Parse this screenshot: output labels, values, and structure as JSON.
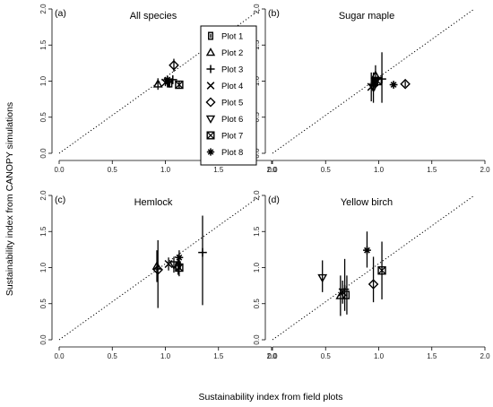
{
  "chart_data": {
    "type": "scatter",
    "xlabel": "Sustainability index from field plots",
    "ylabel": "Sustainability index from CANOPY simulations",
    "xlim": [
      0,
      2
    ],
    "ylim": [
      0,
      2
    ],
    "xticks": [
      "0.0",
      "0.5",
      "1.0",
      "1.5",
      "2.0"
    ],
    "yticks": [
      "0.0",
      "0.5",
      "1.0",
      "1.5",
      "2.0"
    ],
    "reference_line": "1:1 dotted",
    "legend": {
      "location": "panel (a), upper right",
      "entries": [
        {
          "name": "Plot 1",
          "marker": "plot1"
        },
        {
          "name": "Plot 2",
          "marker": "triangle-up"
        },
        {
          "name": "Plot 3",
          "marker": "plus"
        },
        {
          "name": "Plot 4",
          "marker": "cross"
        },
        {
          "name": "Plot 5",
          "marker": "diamond"
        },
        {
          "name": "Plot 6",
          "marker": "triangle-down"
        },
        {
          "name": "Plot 7",
          "marker": "boxed-x"
        },
        {
          "name": "Plot 8",
          "marker": "asterisk"
        }
      ]
    },
    "panels": [
      {
        "tag": "(a)",
        "title": "All species",
        "points": [
          {
            "plot": 1,
            "x": 1.04,
            "y": 0.97,
            "yerr": [
              0.91,
              1.03
            ]
          },
          {
            "plot": 2,
            "x": 0.93,
            "y": 0.96,
            "yerr": [
              0.88,
              1.04
            ]
          },
          {
            "plot": 3,
            "x": 1.07,
            "y": 1.02,
            "yerr": [
              0.96,
              1.08
            ]
          },
          {
            "plot": 4,
            "x": 1.0,
            "y": 0.98,
            "yerr": [
              0.93,
              1.03
            ]
          },
          {
            "plot": 5,
            "x": 1.08,
            "y": 1.22,
            "yerr": [
              1.13,
              1.31
            ]
          },
          {
            "plot": 6,
            "x": 1.03,
            "y": 0.99,
            "yerr": [
              0.94,
              1.04
            ]
          },
          {
            "plot": 7,
            "x": 1.13,
            "y": 0.95,
            "yerr": [
              0.9,
              1.0
            ]
          },
          {
            "plot": 8,
            "x": 1.02,
            "y": 1.02,
            "yerr": [
              0.97,
              1.07
            ]
          }
        ]
      },
      {
        "tag": "(b)",
        "title": "Sugar maple",
        "points": [
          {
            "plot": 1,
            "x": 0.96,
            "y": 0.98,
            "yerr": [
              0.9,
              1.06
            ]
          },
          {
            "plot": 2,
            "x": 0.97,
            "y": 1.08,
            "yerr": [
              0.92,
              1.22
            ]
          },
          {
            "plot": 3,
            "x": 1.03,
            "y": 1.03,
            "yerr": [
              0.7,
              1.4
            ]
          },
          {
            "plot": 4,
            "x": 0.93,
            "y": 0.92,
            "yerr": [
              0.72,
              1.12
            ]
          },
          {
            "plot": 5,
            "x": 1.25,
            "y": 0.96,
            "yerr": [
              0.92,
              1.0
            ]
          },
          {
            "plot": 6,
            "x": 0.95,
            "y": 0.91,
            "yerr": [
              0.7,
              1.12
            ]
          },
          {
            "plot": 7,
            "x": 0.99,
            "y": 1.0,
            "yerr": [
              0.93,
              1.07
            ]
          },
          {
            "plot": 8,
            "x": 1.14,
            "y": 0.95,
            "yerr": [
              0.9,
              1.0
            ]
          }
        ]
      },
      {
        "tag": "(c)",
        "title": "Hemlock",
        "points": [
          {
            "plot": 1,
            "x": 1.12,
            "y": 1.03,
            "yerr": [
              0.9,
              1.16
            ]
          },
          {
            "plot": 2,
            "x": 0.92,
            "y": 1.02,
            "yerr": [
              0.8,
              1.24
            ]
          },
          {
            "plot": 3,
            "x": 1.35,
            "y": 1.21,
            "yerr": [
              0.48,
              1.72
            ]
          },
          {
            "plot": 4,
            "x": 1.03,
            "y": 1.05,
            "yerr": [
              0.96,
              1.14
            ]
          },
          {
            "plot": 5,
            "x": 0.93,
            "y": 0.97,
            "yerr": [
              0.44,
              1.38
            ]
          },
          {
            "plot": 6,
            "x": 1.08,
            "y": 1.04,
            "yerr": [
              0.93,
              1.15
            ]
          },
          {
            "plot": 7,
            "x": 1.13,
            "y": 1.0,
            "yerr": [
              0.88,
              1.12
            ]
          },
          {
            "plot": 8,
            "x": 1.13,
            "y": 1.14,
            "yerr": [
              1.04,
              1.24
            ]
          }
        ]
      },
      {
        "tag": "(d)",
        "title": "Yellow birch",
        "points": [
          {
            "plot": 1,
            "x": 0.7,
            "y": 0.62,
            "yerr": [
              0.35,
              0.89
            ]
          },
          {
            "plot": 2,
            "x": 0.64,
            "y": 0.61,
            "yerr": [
              0.33,
              0.89
            ]
          },
          {
            "plot": 3,
            "x": 0.68,
            "y": 0.7,
            "yerr": [
              0.4,
              1.12
            ]
          },
          {
            "plot": 4,
            "x": 0.66,
            "y": 0.66,
            "yerr": [
              0.5,
              0.82
            ]
          },
          {
            "plot": 5,
            "x": 0.95,
            "y": 0.77,
            "yerr": [
              0.52,
              1.15
            ]
          },
          {
            "plot": 6,
            "x": 0.47,
            "y": 0.86,
            "yerr": [
              0.66,
              1.1
            ]
          },
          {
            "plot": 7,
            "x": 1.03,
            "y": 0.96,
            "yerr": [
              0.56,
              1.36
            ]
          },
          {
            "plot": 8,
            "x": 0.89,
            "y": 1.24,
            "yerr": [
              1.0,
              1.5
            ]
          }
        ]
      }
    ]
  }
}
